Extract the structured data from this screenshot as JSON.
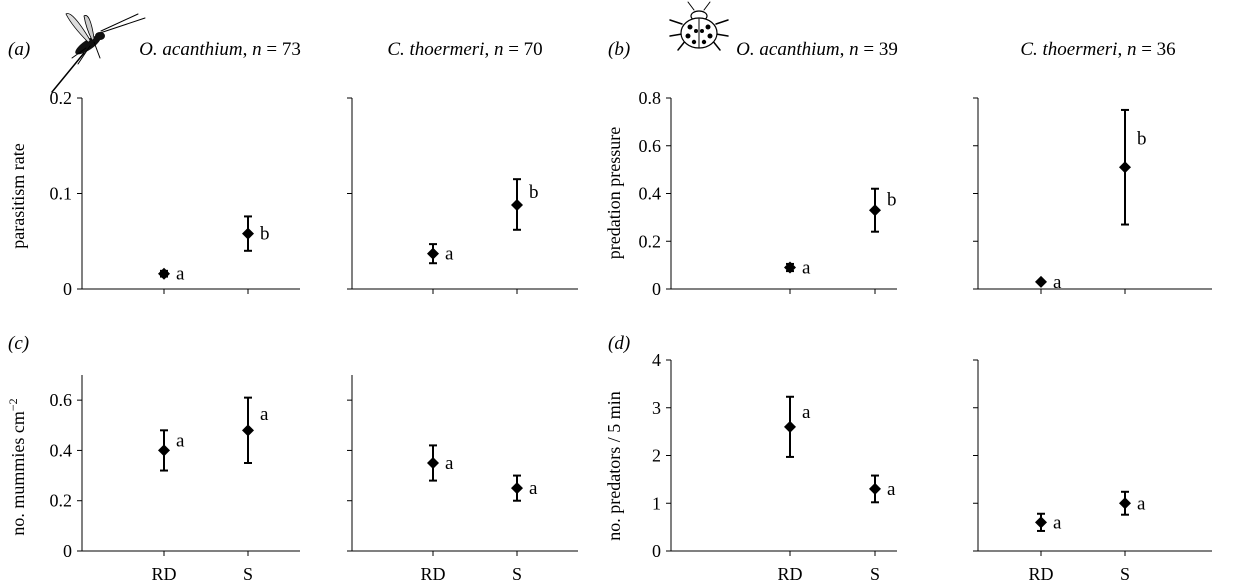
{
  "panel_labels": {
    "a": "(a)",
    "b": "(b)",
    "c": "(c)",
    "d": "(d)"
  },
  "icons": {
    "top_left": "wasp-icon",
    "top_right": "ladybird-icon"
  },
  "column_titles": [
    {
      "species": "O. acanthium",
      "n_label": "n",
      "n_value": "73"
    },
    {
      "species": "C. thoermeri",
      "n_label": "n",
      "n_value": "70"
    },
    {
      "species": "O. acanthium",
      "n_label": "n",
      "n_value": "39"
    },
    {
      "species": "C. thoermeri",
      "n_label": "n",
      "n_value": "36"
    }
  ],
  "ylabels": {
    "a": "parasitism rate",
    "b": "predation pressure",
    "c": "no. mummies cm",
    "c_superscript": "−2",
    "d": "no. predators / 5 min"
  },
  "chart_data": [
    {
      "id": "a-left",
      "type": "scatter",
      "categories": [
        "RD",
        "S"
      ],
      "ylim": [
        0,
        0.2
      ],
      "yticks": [
        "0",
        "0.1",
        "0.2"
      ],
      "yticks_shown": true,
      "values": [
        0.016,
        0.058
      ],
      "err_low": [
        0.013,
        0.04
      ],
      "err_high": [
        0.019,
        0.076
      ],
      "letters": [
        "a",
        "b"
      ],
      "show_xticklabels": false
    },
    {
      "id": "a-right",
      "type": "scatter",
      "categories": [
        "RD",
        "S"
      ],
      "ylim": [
        0,
        0.2
      ],
      "yticks": [
        "0",
        "0.1",
        "0.2"
      ],
      "yticks_shown": false,
      "values": [
        0.037,
        0.088
      ],
      "err_low": [
        0.027,
        0.062
      ],
      "err_high": [
        0.047,
        0.115
      ],
      "letters": [
        "a",
        "b"
      ],
      "show_xticklabels": false
    },
    {
      "id": "b-left",
      "type": "scatter",
      "categories": [
        "RD",
        "S"
      ],
      "ylim": [
        0,
        0.8
      ],
      "yticks": [
        "0",
        "0.2",
        "0.4",
        "0.6",
        "0.8"
      ],
      "yticks_shown": true,
      "values": [
        0.09,
        0.33
      ],
      "err_low": [
        0.075,
        0.24
      ],
      "err_high": [
        0.105,
        0.42
      ],
      "letters": [
        "a",
        "b"
      ],
      "show_xticklabels": false
    },
    {
      "id": "b-right",
      "type": "scatter",
      "categories": [
        "RD",
        "S"
      ],
      "ylim": [
        0,
        0.8
      ],
      "yticks": [
        "0",
        "0.2",
        "0.4",
        "0.6",
        "0.8"
      ],
      "yticks_shown": false,
      "values": [
        0.03,
        0.51
      ],
      "err_low": [
        0.03,
        0.27
      ],
      "err_high": [
        0.03,
        0.75
      ],
      "letters": [
        "a",
        "b"
      ],
      "show_xticklabels": false
    },
    {
      "id": "c-left",
      "type": "scatter",
      "categories": [
        "RD",
        "S"
      ],
      "ylim": [
        0,
        0.7
      ],
      "yticks": [
        "0",
        "0.2",
        "0.4",
        "0.6"
      ],
      "yticks_shown": true,
      "values": [
        0.4,
        0.48
      ],
      "err_low": [
        0.32,
        0.35
      ],
      "err_high": [
        0.48,
        0.61
      ],
      "letters": [
        "a",
        "a"
      ],
      "show_xticklabels": true
    },
    {
      "id": "c-right",
      "type": "scatter",
      "categories": [
        "RD",
        "S"
      ],
      "ylim": [
        0,
        0.7
      ],
      "yticks": [
        "0",
        "0.2",
        "0.4",
        "0.6"
      ],
      "yticks_shown": false,
      "values": [
        0.35,
        0.25
      ],
      "err_low": [
        0.28,
        0.2
      ],
      "err_high": [
        0.42,
        0.3
      ],
      "letters": [
        "a",
        "a"
      ],
      "show_xticklabels": true
    },
    {
      "id": "d-left",
      "type": "scatter",
      "categories": [
        "RD",
        "S"
      ],
      "ylim": [
        0,
        4
      ],
      "yticks": [
        "0",
        "1",
        "2",
        "3",
        "4"
      ],
      "yticks_shown": true,
      "values": [
        2.6,
        1.3
      ],
      "err_low": [
        1.97,
        1.02
      ],
      "err_high": [
        3.23,
        1.58
      ],
      "letters": [
        "a",
        "a"
      ],
      "show_xticklabels": true
    },
    {
      "id": "d-right",
      "type": "scatter",
      "categories": [
        "RD",
        "S"
      ],
      "ylim": [
        0,
        4
      ],
      "yticks": [
        "0",
        "1",
        "2",
        "3",
        "4"
      ],
      "yticks_shown": false,
      "values": [
        0.6,
        1.0
      ],
      "err_low": [
        0.42,
        0.76
      ],
      "err_high": [
        0.78,
        1.24
      ],
      "letters": [
        "a",
        "a"
      ],
      "show_xticklabels": true
    }
  ]
}
